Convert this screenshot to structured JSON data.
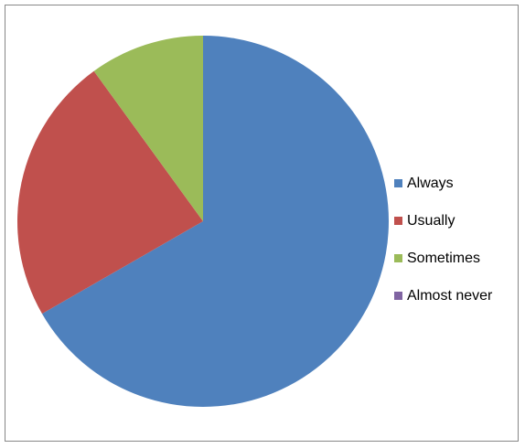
{
  "chart_data": {
    "type": "pie",
    "categories": [
      "Always",
      "Usually",
      "Sometimes",
      "Almost never"
    ],
    "values": [
      66.7,
      23.3,
      10.0,
      0.0
    ],
    "colors": [
      "#4F81BD",
      "#C0504D",
      "#9BBB59",
      "#8064A2"
    ],
    "start_angle_deg": 0,
    "direction": "clockwise",
    "legend_position": "right"
  }
}
